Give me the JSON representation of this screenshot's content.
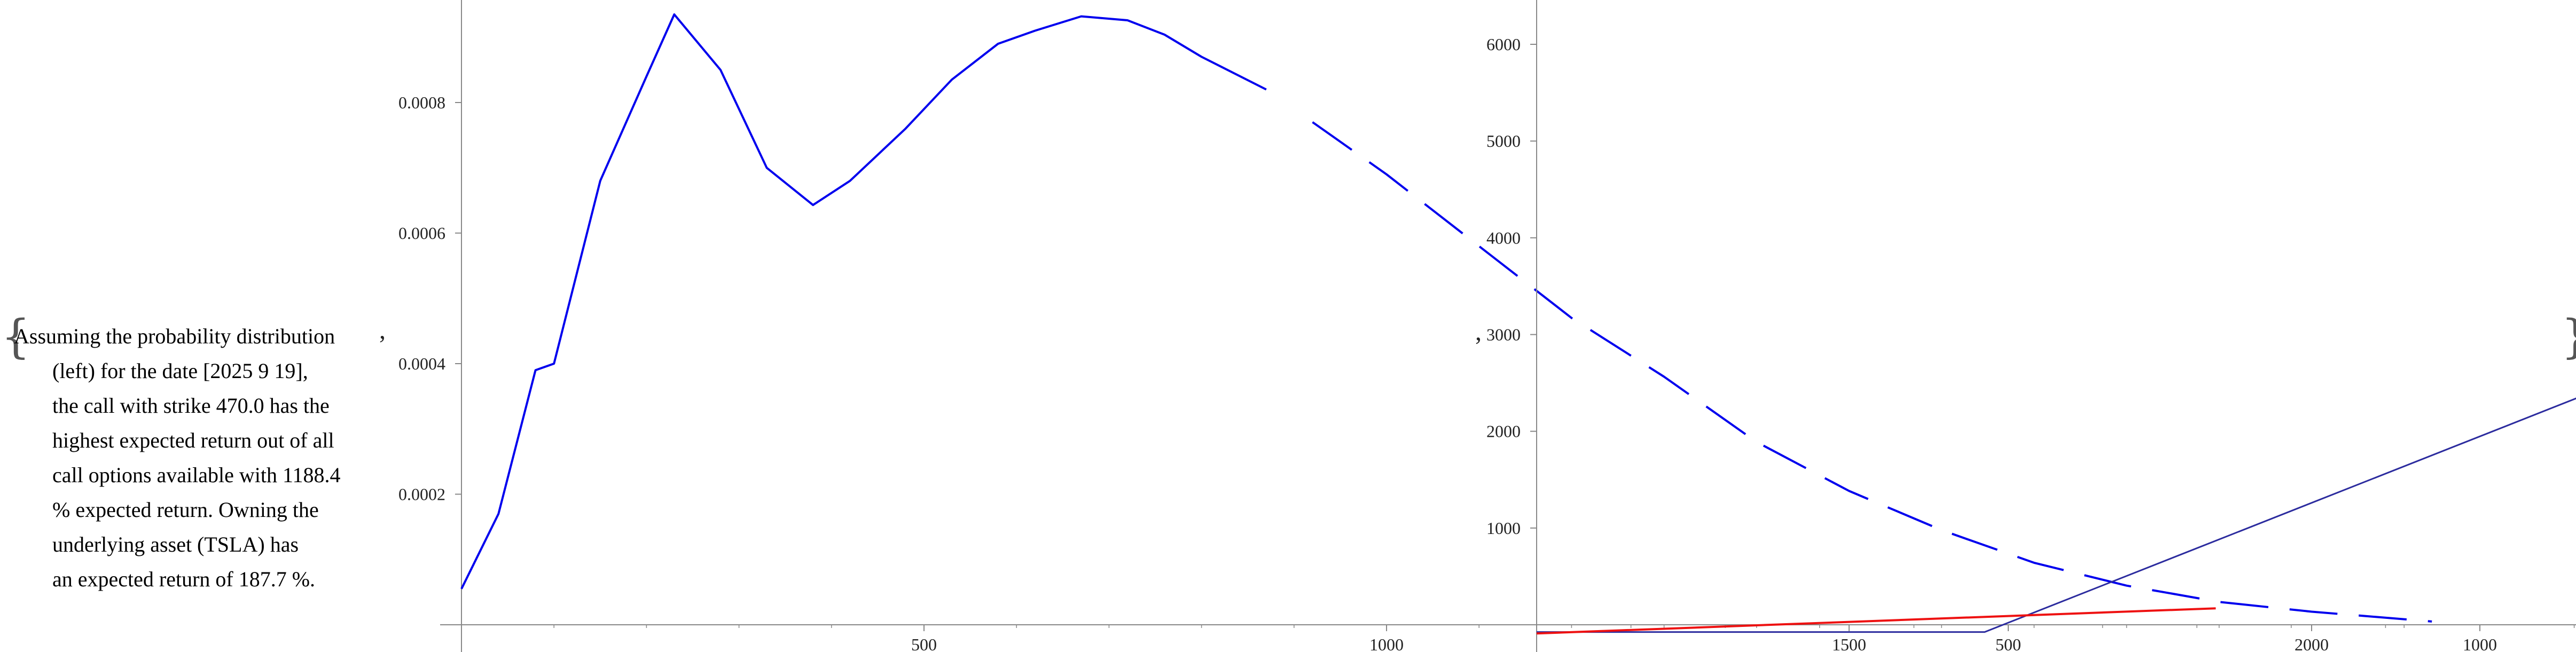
{
  "text": {
    "lines": [
      "Assuming the probability distribution",
      "(left) for the date [2025 9 19],",
      "the call with strike 470.0 has the",
      "highest expected return out of all",
      "call options available with 1188.4",
      "% expected return. Owning the",
      "underlying asset (TSLA) has",
      "an expected return of 187.7 %."
    ],
    "separator": ","
  },
  "colors": {
    "density": "#0000ee",
    "payoff": "#2b2b9e",
    "cost": "#ee1111",
    "axis": "#888888"
  },
  "chart_data": [
    {
      "type": "line",
      "title": "",
      "xlabel": "",
      "ylabel": "",
      "xlim": [
        0,
        2180
      ],
      "ylim": [
        0,
        0.00096
      ],
      "x_ticks": [
        500,
        1000,
        1500,
        2000
      ],
      "y_ticks": [
        0.0002,
        0.0004,
        0.0006,
        0.0008
      ],
      "y_tick_labels": [
        "0.0002",
        "0.0004",
        "0.0006",
        "0.0008"
      ],
      "grid": false,
      "series": [
        {
          "line_style": "solid-then-dashed",
          "x": [
            0,
            40,
            80,
            100,
            150,
            200,
            230,
            280,
            330,
            380,
            420,
            480,
            530,
            580,
            620,
            670,
            720,
            760,
            800,
            870
          ],
          "y": [
            5.5e-05,
            0.00017,
            0.00039,
            0.0004,
            0.00068,
            0.00084,
            0.000935,
            0.00085,
            0.0007,
            0.000643,
            0.00068,
            0.00076,
            0.000835,
            0.00089,
            0.00091,
            0.000932,
            0.000926,
            0.000904,
            0.00087,
            0.00082
          ]
        },
        {
          "line_style": "dashed",
          "x": [
            920,
            1000,
            1100,
            1200,
            1300,
            1400,
            1500,
            1600,
            1700,
            1800,
            1900,
            2000,
            2100,
            2130
          ],
          "y": [
            0.00077,
            0.00069,
            0.00058,
            0.00047,
            0.00038,
            0.00028,
            0.000205,
            0.000145,
            9.5e-05,
            6e-05,
            3.5e-05,
            2e-05,
            8.5e-06,
            5e-06
          ]
        }
      ]
    },
    {
      "type": "line",
      "title": "",
      "xlabel": "",
      "ylabel": "",
      "xlim": [
        0,
        2180
      ],
      "ylim": [
        -100,
        6450
      ],
      "x_ticks": [
        500,
        1000,
        1500,
        2000
      ],
      "y_ticks": [
        1000,
        2000,
        3000,
        4000,
        5000,
        6000
      ],
      "grid": false,
      "series": [
        {
          "x": [
            0,
            475,
            2130
          ],
          "y": [
            -75,
            -75,
            6300
          ]
        },
        {
          "x": [
            0,
            720
          ],
          "y": [
            -90,
            170
          ]
        }
      ]
    }
  ]
}
